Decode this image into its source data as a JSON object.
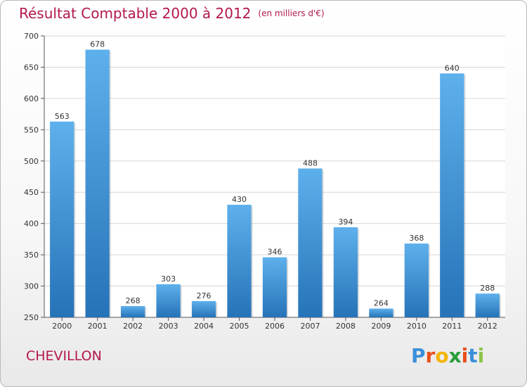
{
  "header": {
    "title": "Résultat Comptable 2000 à 2012",
    "subtitle": "(en milliers d'€)"
  },
  "footer": {
    "place": "CHEVILLON",
    "logo_letters": [
      "P",
      "r",
      "o",
      "x",
      "i",
      "t",
      "i"
    ],
    "logo_colors": [
      "#3a8fd8",
      "#e94e1b",
      "#f4b400",
      "#2a9d3a",
      "#e94e1b",
      "#3a8fd8",
      "#8bc34a"
    ]
  },
  "chart_data": {
    "type": "bar",
    "title": "Résultat Comptable 2000 à 2012",
    "subtitle": "(en milliers d'€)",
    "xlabel": "",
    "ylabel": "",
    "categories": [
      "2000",
      "2001",
      "2002",
      "2003",
      "2004",
      "2005",
      "2006",
      "2007",
      "2008",
      "2009",
      "2010",
      "2011",
      "2012"
    ],
    "values": [
      563,
      678,
      268,
      303,
      276,
      430,
      346,
      488,
      394,
      264,
      368,
      640,
      288
    ],
    "data_labels": [
      "563",
      "678",
      "268",
      "303",
      "276",
      "430",
      "346",
      "488",
      "394",
      "264",
      "368",
      "640",
      "288"
    ],
    "ylim": [
      250,
      700
    ],
    "yticks": [
      250,
      300,
      350,
      400,
      450,
      500,
      550,
      600,
      650,
      700
    ],
    "ytick_labels": [
      "250",
      "300",
      "350",
      "400",
      "450",
      "500",
      "550",
      "600",
      "650",
      "700"
    ],
    "grid": true,
    "bar_color_top": "#5eb0ec",
    "bar_color_bottom": "#2673b8"
  }
}
